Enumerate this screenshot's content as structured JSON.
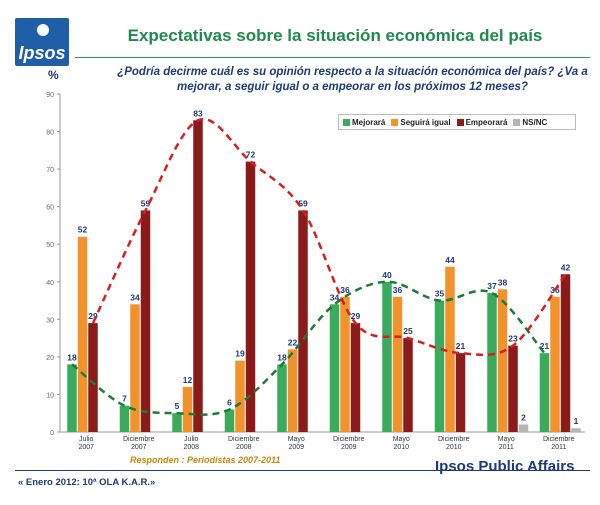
{
  "header": {
    "logo": "Ipsos",
    "title": "Expectativas sobre la situación económica del país",
    "question": "¿Podría decirme cuál es su opinión respecto a la situación económica del país? ¿Va a mejorar, a seguir igual o a empeorar en los próximos 12 meses?",
    "percent_symbol": "%"
  },
  "footer": {
    "respond": "Responden : Periodistas 2007-2011",
    "wave": "« Enero 2012: 10ª OLA K.A.R.»",
    "brand": "Ipsos Public Affairs"
  },
  "colors": {
    "mejorara": "#3aaa5c",
    "seguira": "#f2922c",
    "empeorara": "#8b1a1a",
    "nsnc": "#b5b5b5",
    "trend_green": "#1e7a35",
    "trend_red": "#d42020"
  },
  "chart_data": {
    "type": "bar",
    "categories": [
      "Julio\n2007",
      "Diciembre\n2007",
      "Julio\n2008",
      "Diciembre\n2008",
      "Mayo\n2009",
      "Diciembre\n2009",
      "Mayo\n2010",
      "Diciembre\n2010",
      "Mayo\n2011",
      "Diciembre\n2011"
    ],
    "ylim": [
      0,
      90
    ],
    "yticks": [
      0,
      10,
      20,
      30,
      40,
      50,
      60,
      70,
      80,
      90
    ],
    "legend_position": "top-right",
    "grid": false,
    "series": [
      {
        "name": "Mejorará",
        "values": [
          18,
          7,
          5,
          6,
          18,
          34,
          40,
          35,
          37,
          21
        ]
      },
      {
        "name": "Seguirá igual",
        "values": [
          52,
          34,
          12,
          19,
          22,
          36,
          36,
          44,
          38,
          36
        ]
      },
      {
        "name": "Empeorará",
        "values": [
          29,
          59,
          83,
          72,
          59,
          29,
          25,
          21,
          23,
          42
        ]
      },
      {
        "name": "NS/NC",
        "values": [
          null,
          null,
          null,
          null,
          null,
          null,
          null,
          null,
          2,
          1
        ]
      }
    ]
  }
}
